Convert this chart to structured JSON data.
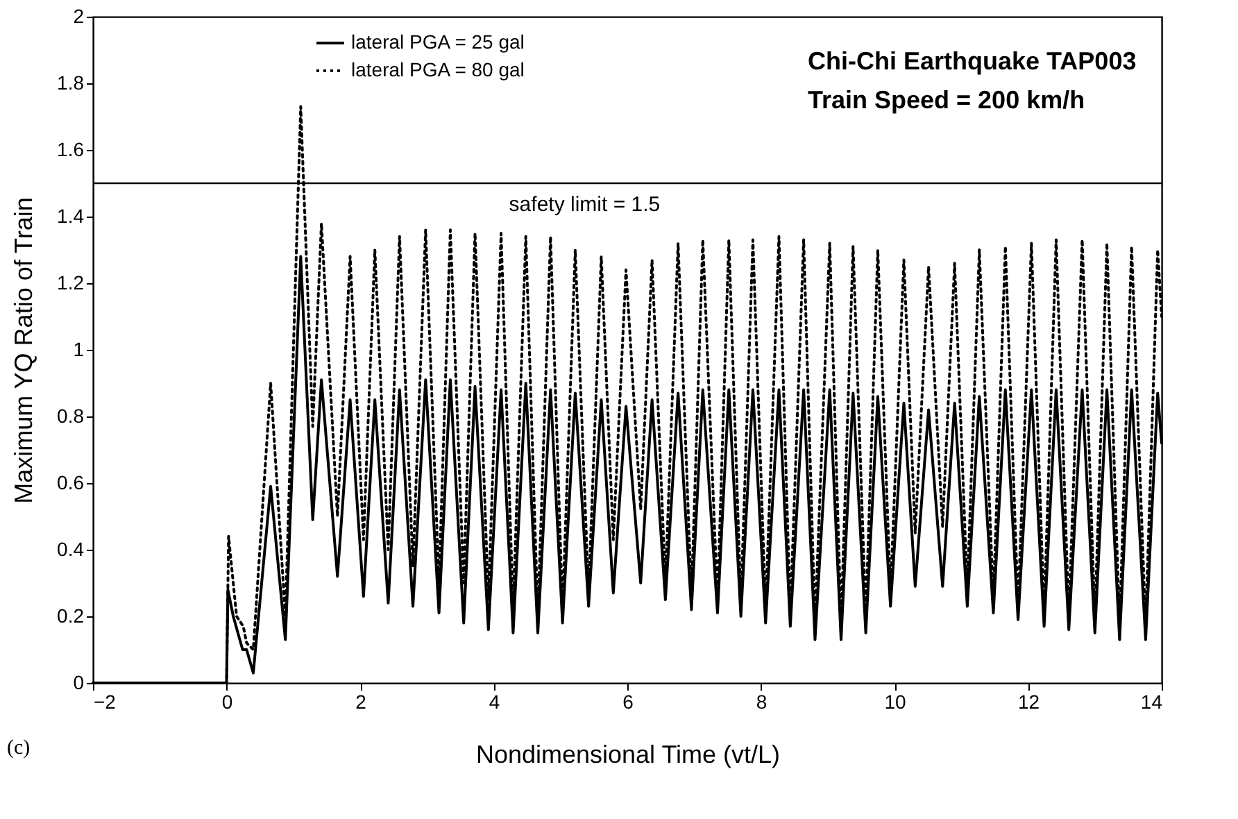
{
  "chart_data": {
    "type": "line",
    "xlabel": "Nondimensional Time  (vt/L)",
    "ylabel": "Maximum YQ Ratio of Train",
    "xlim": [
      -2,
      14
    ],
    "xticks": [
      -2,
      0,
      2,
      4,
      6,
      8,
      10,
      12,
      14
    ],
    "ylim": [
      0,
      2
    ],
    "yticks": [
      0,
      0.2,
      0.4,
      0.6,
      0.8,
      1,
      1.2,
      1.4,
      1.6,
      1.8,
      2
    ],
    "grid": false,
    "legend": "top left",
    "annotations": [
      "Chi-Chi Earthquake TAP003",
      "Train Speed = 200 km/h",
      "(c)"
    ],
    "ref_lines": [
      {
        "axis": "y",
        "value": 1.5,
        "label": "safety limit = 1.5",
        "color": "#000000",
        "line_style": "solid"
      }
    ],
    "series": [
      {
        "name": "lateral PGA = 25 gal",
        "color": "#000000",
        "line_style": "solid",
        "x": [
          -2,
          0,
          0.02,
          0.1,
          0.24,
          0.3,
          0.4,
          0.66,
          0.88,
          1.11,
          1.29,
          1.42,
          1.66,
          1.85,
          2.05,
          2.22,
          2.42,
          2.59,
          2.79,
          2.98,
          3.18,
          3.35,
          3.55,
          3.72,
          3.92,
          4.11,
          4.29,
          4.48,
          4.66,
          4.85,
          5.03,
          5.22,
          5.42,
          5.61,
          5.79,
          5.98,
          6.2,
          6.37,
          6.57,
          6.76,
          6.96,
          7.13,
          7.35,
          7.52,
          7.7,
          7.88,
          8.07,
          8.27,
          8.44,
          8.64,
          8.81,
          9.03,
          9.2,
          9.38,
          9.57,
          9.75,
          9.94,
          10.14,
          10.31,
          10.51,
          10.72,
          10.9,
          11.09,
          11.27,
          11.48,
          11.66,
          11.85,
          12.05,
          12.24,
          12.42,
          12.61,
          12.81,
          13.0,
          13.18,
          13.37,
          13.55,
          13.76,
          13.94,
          14
        ],
        "values": [
          0,
          0,
          0.28,
          0.2,
          0.1,
          0.1,
          0.03,
          0.59,
          0.13,
          1.28,
          0.49,
          0.91,
          0.32,
          0.85,
          0.26,
          0.85,
          0.24,
          0.88,
          0.23,
          0.91,
          0.21,
          0.91,
          0.18,
          0.89,
          0.16,
          0.88,
          0.15,
          0.9,
          0.15,
          0.88,
          0.18,
          0.87,
          0.23,
          0.85,
          0.27,
          0.83,
          0.3,
          0.85,
          0.25,
          0.87,
          0.22,
          0.88,
          0.21,
          0.88,
          0.2,
          0.88,
          0.18,
          0.88,
          0.17,
          0.88,
          0.13,
          0.88,
          0.13,
          0.87,
          0.15,
          0.86,
          0.23,
          0.84,
          0.29,
          0.82,
          0.29,
          0.84,
          0.23,
          0.86,
          0.21,
          0.88,
          0.19,
          0.88,
          0.17,
          0.88,
          0.16,
          0.88,
          0.15,
          0.88,
          0.13,
          0.88,
          0.13,
          0.87,
          0.72
        ]
      },
      {
        "name": "lateral PGA = 80 gal",
        "color": "#000000",
        "line_style": "dotted",
        "x": [
          -2,
          0,
          0.03,
          0.15,
          0.25,
          0.3,
          0.4,
          0.66,
          0.88,
          1.11,
          1.29,
          1.42,
          1.66,
          1.85,
          2.05,
          2.22,
          2.42,
          2.59,
          2.79,
          2.98,
          3.18,
          3.35,
          3.55,
          3.72,
          3.92,
          4.11,
          4.29,
          4.48,
          4.66,
          4.85,
          5.03,
          5.22,
          5.42,
          5.61,
          5.79,
          5.98,
          6.2,
          6.37,
          6.57,
          6.76,
          6.96,
          7.13,
          7.35,
          7.52,
          7.7,
          7.88,
          8.07,
          8.27,
          8.44,
          8.64,
          8.81,
          9.03,
          9.2,
          9.38,
          9.57,
          9.75,
          9.94,
          10.14,
          10.31,
          10.51,
          10.72,
          10.9,
          11.09,
          11.27,
          11.48,
          11.66,
          11.85,
          12.05,
          12.24,
          12.42,
          12.61,
          12.81,
          13.0,
          13.18,
          13.37,
          13.55,
          13.76,
          13.94,
          14
        ],
        "values": [
          0,
          0,
          0.44,
          0.2,
          0.17,
          0.12,
          0.1,
          0.9,
          0.2,
          1.73,
          0.77,
          1.38,
          0.5,
          1.28,
          0.43,
          1.3,
          0.4,
          1.34,
          0.35,
          1.36,
          0.3,
          1.36,
          0.3,
          1.35,
          0.25,
          1.35,
          0.22,
          1.34,
          0.2,
          1.34,
          0.22,
          1.3,
          0.27,
          1.28,
          0.43,
          1.24,
          0.52,
          1.27,
          0.3,
          1.32,
          0.26,
          1.33,
          0.25,
          1.33,
          0.24,
          1.33,
          0.22,
          1.34,
          0.21,
          1.33,
          0.18,
          1.32,
          0.18,
          1.31,
          0.2,
          1.3,
          0.27,
          1.27,
          0.45,
          1.25,
          0.47,
          1.26,
          0.28,
          1.3,
          0.25,
          1.31,
          0.23,
          1.32,
          0.21,
          1.33,
          0.2,
          1.33,
          0.19,
          1.32,
          0.17,
          1.31,
          0.17,
          1.3,
          1.1
        ]
      }
    ]
  }
}
